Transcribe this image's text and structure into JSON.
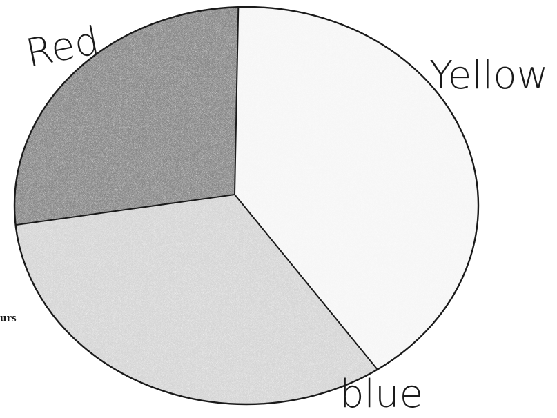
{
  "colors": {
    "outline": "#1a1a1a",
    "red_shade": "#6a6a6a",
    "blue_shade": "#c4c4c4",
    "yellow_shade": "#f2f2f2",
    "paper": "#ffffff"
  },
  "chart_data": {
    "type": "pie",
    "hand_drawn": true,
    "slices": [
      {
        "label": "Red",
        "value": 0.26,
        "fill": "#6a6a6a",
        "shading": "heavy pencil"
      },
      {
        "label": "Yellow",
        "value": 0.41,
        "fill": "#f2f2f2",
        "shading": "very light pencil"
      },
      {
        "label": "blue",
        "value": 0.33,
        "fill": "#c4c4c4",
        "shading": "light pencil"
      }
    ],
    "edge_text": "urs"
  }
}
